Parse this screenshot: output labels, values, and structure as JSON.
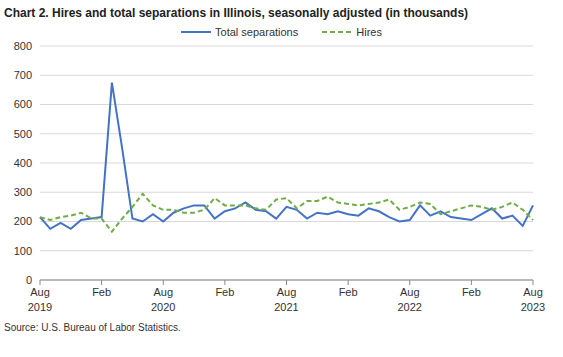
{
  "chart_data": {
    "type": "line",
    "title": "Chart 2. Hires and total separations in Illinois, seasonally adjusted (in thousands)",
    "source": "Source: U.S. Bureau of Labor Statistics.",
    "categories": [
      "Aug\n2019",
      null,
      null,
      null,
      null,
      null,
      "Feb",
      null,
      null,
      null,
      null,
      null,
      "Aug\n2020",
      null,
      null,
      null,
      null,
      null,
      "Feb",
      null,
      null,
      null,
      null,
      null,
      "Aug\n2021",
      null,
      null,
      null,
      null,
      null,
      "Feb",
      null,
      null,
      null,
      null,
      null,
      "Aug\n2022",
      null,
      null,
      null,
      null,
      null,
      "Feb",
      null,
      null,
      null,
      null,
      null,
      "Aug\n2023"
    ],
    "series": [
      {
        "name": "Total separations",
        "color": "#4472c4",
        "line_style": "solid",
        "values": [
          215,
          175,
          195,
          175,
          205,
          210,
          215,
          675,
          450,
          210,
          200,
          225,
          200,
          230,
          245,
          255,
          255,
          210,
          235,
          245,
          265,
          240,
          235,
          210,
          250,
          240,
          210,
          230,
          225,
          235,
          225,
          220,
          245,
          235,
          215,
          200,
          205,
          255,
          220,
          235,
          215,
          210,
          205,
          225,
          245,
          210,
          220,
          185,
          255
        ]
      },
      {
        "name": "Hires",
        "color": "#70ad47",
        "line_style": "dashed",
        "values": [
          215,
          205,
          215,
          220,
          230,
          210,
          210,
          165,
          210,
          250,
          295,
          255,
          240,
          240,
          230,
          230,
          240,
          280,
          255,
          255,
          255,
          245,
          240,
          275,
          280,
          245,
          270,
          270,
          285,
          265,
          260,
          255,
          260,
          265,
          275,
          240,
          250,
          265,
          260,
          225,
          235,
          245,
          255,
          250,
          240,
          250,
          265,
          240,
          205
        ]
      }
    ],
    "ylim": [
      0,
      800
    ],
    "yticks": [
      0,
      100,
      200,
      300,
      400,
      500,
      600,
      700,
      800
    ],
    "grid": true,
    "legend": "top"
  }
}
